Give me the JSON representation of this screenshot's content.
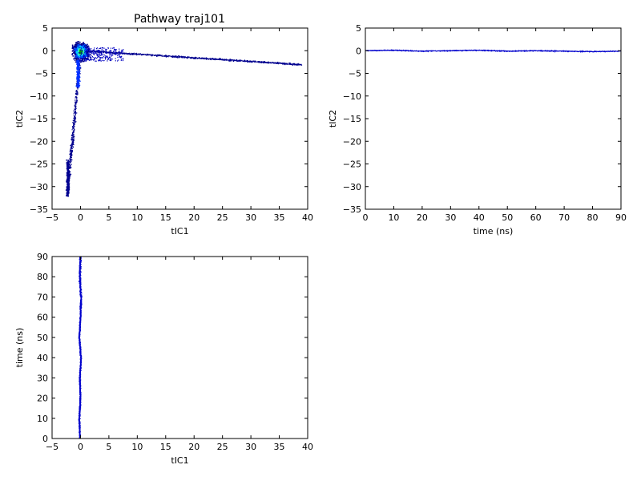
{
  "figure": {
    "title": "Pathway traj101"
  },
  "chart_data": [
    {
      "type": "scatter",
      "panel": "top-left",
      "title": "Pathway traj101",
      "xlabel": "tIC1",
      "ylabel": "tIC2",
      "xlim": [
        -5,
        40
      ],
      "ylim": [
        -35,
        5
      ],
      "xticks": [
        "−5",
        "0",
        "5",
        "10",
        "15",
        "20",
        "25",
        "30",
        "35",
        "40"
      ],
      "yticks": [
        "−35",
        "−30",
        "−25",
        "−20",
        "−15",
        "−10",
        "−5",
        "0",
        "5"
      ],
      "grid": false,
      "colormap": "jet",
      "description_series": [
        {
          "name": "dense cluster",
          "x": [
            -1.5,
            1.5
          ],
          "y": [
            -2.0,
            1.5
          ]
        },
        {
          "name": "horizontal branch",
          "x": [
            1.5,
            39.0
          ],
          "y": [
            0.0,
            -3.0
          ]
        },
        {
          "name": "vertical branch",
          "x": [
            -2.5,
            0.0
          ],
          "y": [
            -32.0,
            -2.0
          ]
        }
      ]
    },
    {
      "type": "line",
      "panel": "top-right",
      "xlabel": "time (ns)",
      "ylabel": "tIC2",
      "xlim": [
        0,
        90
      ],
      "ylim": [
        -35,
        5
      ],
      "xticks": [
        "0",
        "10",
        "20",
        "30",
        "40",
        "50",
        "60",
        "70",
        "80",
        "90"
      ],
      "yticks": [
        "−35",
        "−30",
        "−25",
        "−20",
        "−15",
        "−10",
        "−5",
        "0",
        "5"
      ],
      "grid": false,
      "series": [
        {
          "x": [
            0,
            10,
            20,
            30,
            40,
            50,
            60,
            70,
            80,
            90
          ],
          "y": [
            0.0,
            0.1,
            -0.1,
            0.0,
            0.1,
            -0.1,
            0.0,
            -0.1,
            -0.2,
            -0.1
          ]
        }
      ]
    },
    {
      "type": "scatter",
      "panel": "bottom-left",
      "xlabel": "tIC1",
      "ylabel": "time (ns)",
      "xlim": [
        -5,
        40
      ],
      "ylim": [
        0,
        90
      ],
      "xticks": [
        "−5",
        "0",
        "5",
        "10",
        "15",
        "20",
        "25",
        "30",
        "35",
        "40"
      ],
      "yticks": [
        "0",
        "10",
        "20",
        "30",
        "40",
        "50",
        "60",
        "70",
        "80",
        "90"
      ],
      "grid": false,
      "series": [
        {
          "x": [
            -0.1,
            -0.2,
            0.0,
            -0.1,
            0.1,
            -0.2,
            0.0,
            0.1,
            -0.1,
            0.0
          ],
          "y": [
            0,
            10,
            20,
            30,
            40,
            50,
            60,
            70,
            80,
            90
          ]
        }
      ]
    }
  ],
  "style": {
    "marker_color": "#0000cc",
    "dense_colors": [
      "#00008f",
      "#0050ff",
      "#00d0ff",
      "#40ffb0",
      "#00a000"
    ]
  }
}
